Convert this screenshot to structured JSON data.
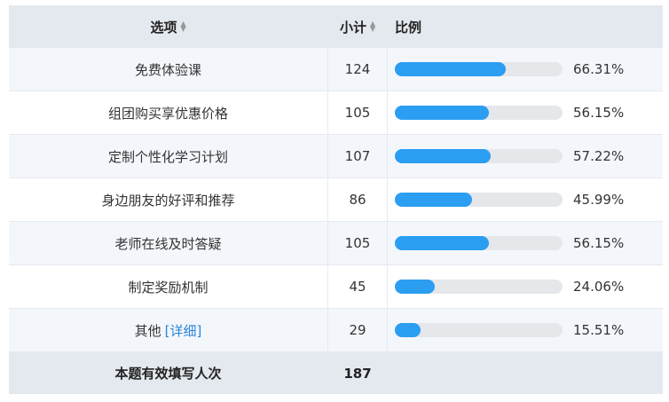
{
  "header": {
    "option_label": "选项",
    "count_label": "小计",
    "ratio_label": "比例"
  },
  "rows": [
    {
      "label": "免费体验课",
      "count": "124",
      "percent": "66.31%",
      "fraction": 0.6631
    },
    {
      "label": "组团购买享优惠价格",
      "count": "105",
      "percent": "56.15%",
      "fraction": 0.5615
    },
    {
      "label": "定制个性化学习计划",
      "count": "107",
      "percent": "57.22%",
      "fraction": 0.5722
    },
    {
      "label": "身边朋友的好评和推荐",
      "count": "86",
      "percent": "45.99%",
      "fraction": 0.4599
    },
    {
      "label": "老师在线及时答疑",
      "count": "105",
      "percent": "56.15%",
      "fraction": 0.5615
    },
    {
      "label": "制定奖励机制",
      "count": "45",
      "percent": "24.06%",
      "fraction": 0.2406
    },
    {
      "label": "其他",
      "count": "29",
      "percent": "15.51%",
      "fraction": 0.1551,
      "link": "[详细]"
    }
  ],
  "footer": {
    "label": "本题有效填写人次",
    "count": "187"
  },
  "colors": {
    "bar_fill": "#2b9ef2",
    "bar_track": "#e5e7ea",
    "header_bg": "#e4e8ef",
    "alt_row_bg": "#f3f7fc",
    "link": "#2b84d8"
  }
}
